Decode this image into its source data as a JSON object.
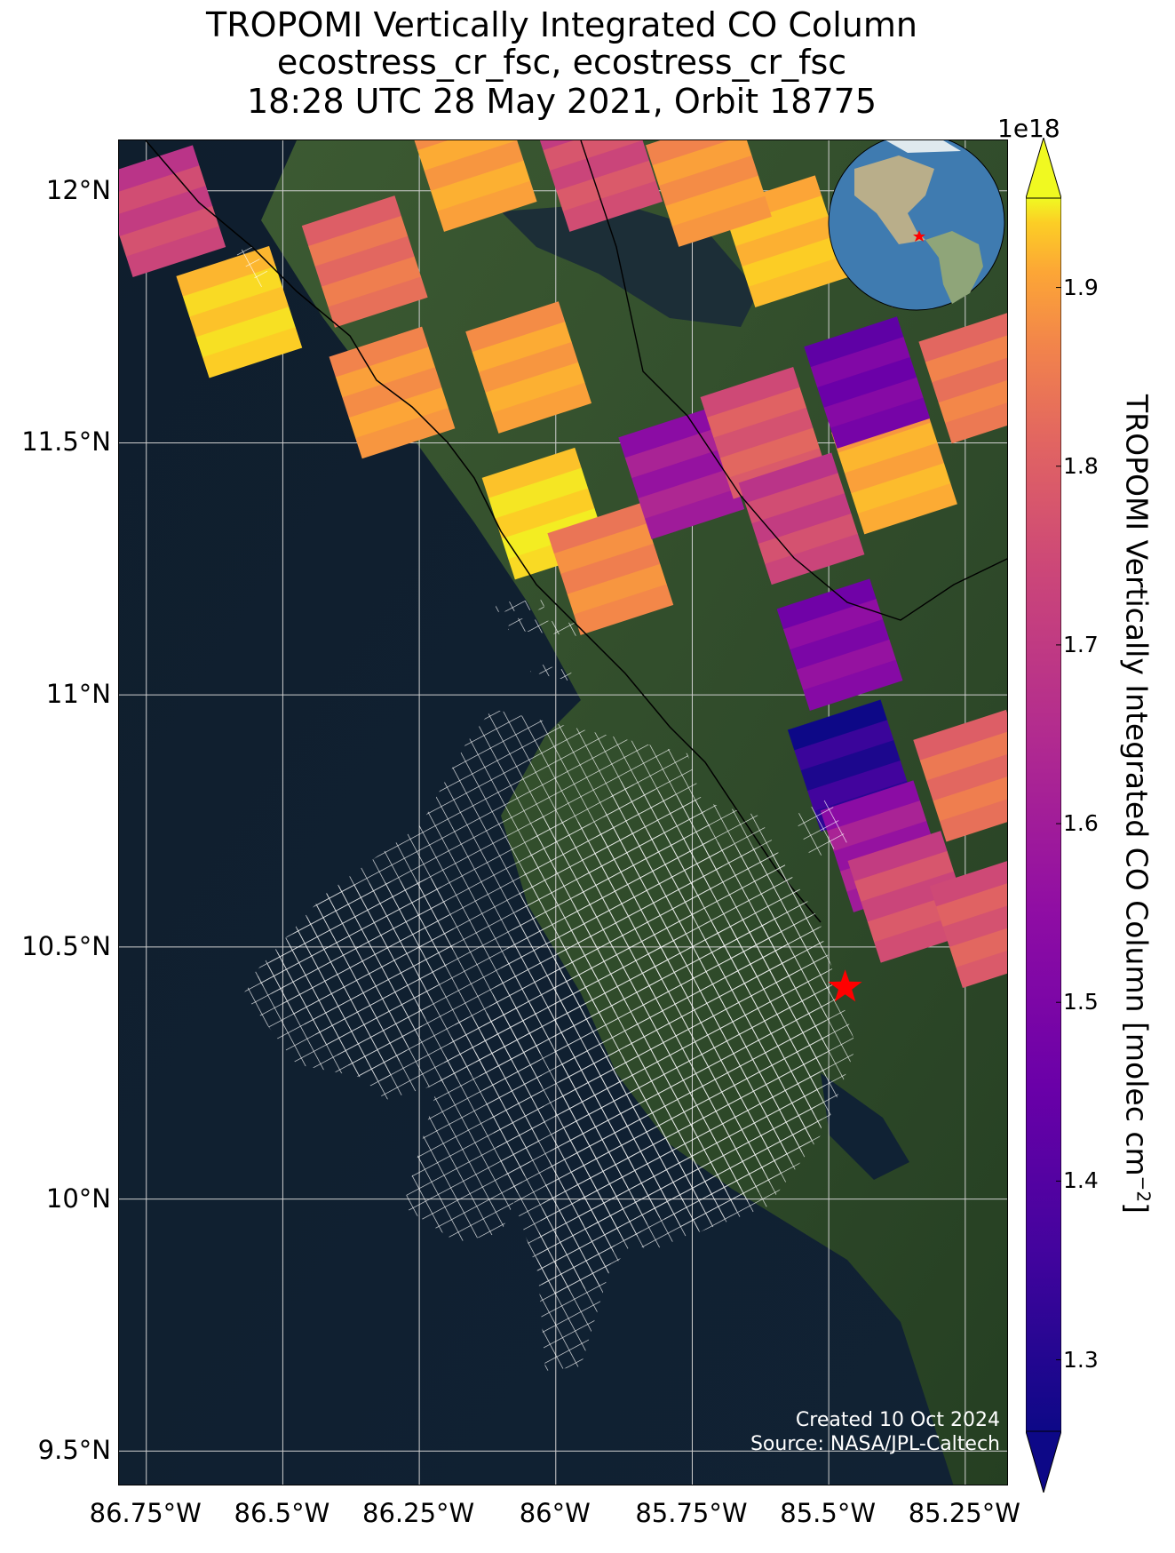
{
  "title": {
    "line1": "TROPOMI Vertically Integrated CO Column",
    "line2": "ecostress_cr_fsc, ecostress_cr_fsc",
    "line3": "18:28 UTC 28 May 2021, Orbit 18775"
  },
  "chart_data": {
    "type": "heatmap",
    "title": "TROPOMI Vertically Integrated CO Column",
    "projection": "map",
    "xlim": [
      -86.8,
      -85.17
    ],
    "ylim": [
      9.43,
      12.1
    ],
    "lat_ticks": [
      {
        "value": 12.0,
        "label": "12°N"
      },
      {
        "value": 11.5,
        "label": "11.5°N"
      },
      {
        "value": 11.0,
        "label": "11°N"
      },
      {
        "value": 10.5,
        "label": "10.5°N"
      },
      {
        "value": 10.0,
        "label": "10°N"
      },
      {
        "value": 9.5,
        "label": "9.5°N"
      }
    ],
    "lon_ticks": [
      {
        "value": -86.75,
        "label": "86.75°W"
      },
      {
        "value": -86.5,
        "label": "86.5°W"
      },
      {
        "value": -86.25,
        "label": "86.25°W"
      },
      {
        "value": -86.0,
        "label": "86°W"
      },
      {
        "value": -85.75,
        "label": "85.75°W"
      },
      {
        "value": -85.5,
        "label": "85.5°W"
      },
      {
        "value": -85.25,
        "label": "85.25°W"
      }
    ],
    "grid": true,
    "site_marker": {
      "lon": -85.47,
      "lat": 10.42,
      "symbol": "star",
      "color": "#ff0000"
    },
    "colorbar": {
      "label": "TROPOMI Vertically Integrated CO Column [molec cm",
      "label_sup": "−2",
      "label_tail": "]",
      "exponent": "1e18",
      "vmin": 1.26,
      "vmax": 1.95,
      "extend": "both",
      "colormap": "plasma",
      "ticks": [
        {
          "value": 1.3,
          "label": "1.3"
        },
        {
          "value": 1.4,
          "label": "1.4"
        },
        {
          "value": 1.5,
          "label": "1.5"
        },
        {
          "value": 1.6,
          "label": "1.6"
        },
        {
          "value": 1.7,
          "label": "1.7"
        },
        {
          "value": 1.8,
          "label": "1.8"
        },
        {
          "value": 1.9,
          "label": "1.9"
        }
      ]
    },
    "pixels": [
      {
        "lon": -86.72,
        "lat": 11.96,
        "value": 1.6
      },
      {
        "lon": -86.58,
        "lat": 11.76,
        "value": 1.88
      },
      {
        "lon": -86.35,
        "lat": 11.86,
        "value": 1.7
      },
      {
        "lon": -86.3,
        "lat": 11.6,
        "value": 1.78
      },
      {
        "lon": -86.05,
        "lat": 11.65,
        "value": 1.8
      },
      {
        "lon": -86.02,
        "lat": 11.36,
        "value": 1.9
      },
      {
        "lon": -85.9,
        "lat": 11.25,
        "value": 1.75
      },
      {
        "lon": -85.77,
        "lat": 11.44,
        "value": 1.5
      },
      {
        "lon": -85.62,
        "lat": 11.52,
        "value": 1.65
      },
      {
        "lon": -85.55,
        "lat": 11.35,
        "value": 1.6
      },
      {
        "lon": -85.48,
        "lat": 11.1,
        "value": 1.45
      },
      {
        "lon": -85.46,
        "lat": 10.86,
        "value": 1.3
      },
      {
        "lon": -85.38,
        "lat": 11.45,
        "value": 1.82
      },
      {
        "lon": -85.43,
        "lat": 11.62,
        "value": 1.42
      },
      {
        "lon": -85.33,
        "lat": 11.9,
        "value": 1.65
      },
      {
        "lon": -85.58,
        "lat": 11.9,
        "value": 1.85
      },
      {
        "lon": -85.72,
        "lat": 12.02,
        "value": 1.78
      },
      {
        "lon": -85.92,
        "lat": 12.05,
        "value": 1.62
      },
      {
        "lon": -86.15,
        "lat": 12.05,
        "value": 1.8
      },
      {
        "lon": -85.4,
        "lat": 10.7,
        "value": 1.5
      },
      {
        "lon": -85.35,
        "lat": 10.6,
        "value": 1.62
      },
      {
        "lon": -85.23,
        "lat": 10.84,
        "value": 1.7
      },
      {
        "lon": -85.2,
        "lat": 10.55,
        "value": 1.65
      },
      {
        "lon": -85.22,
        "lat": 11.63,
        "value": 1.72
      }
    ]
  },
  "inset": {
    "marker": "star"
  },
  "credits": {
    "created": "Created 10 Oct 2024",
    "source": "Source: NASA/JPL-Caltech"
  }
}
